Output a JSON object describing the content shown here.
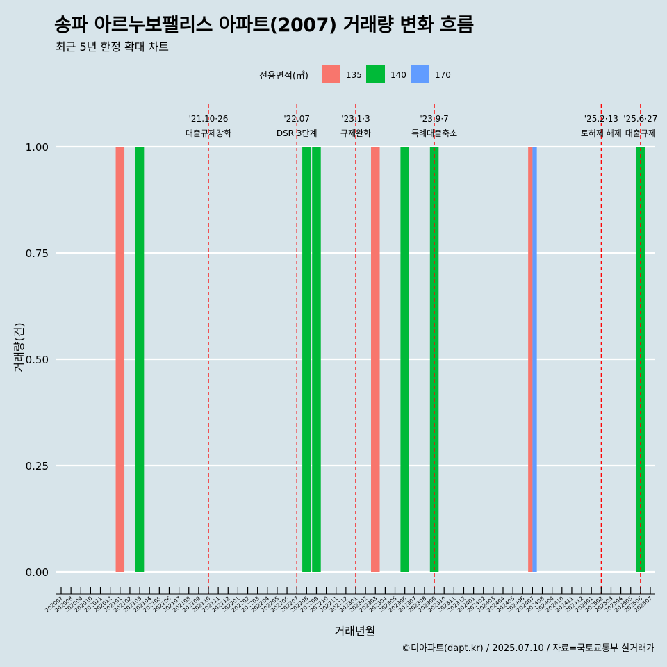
{
  "title": "송파 아르누보팰리스 아파트(2007) 거래량 변화 흐름",
  "subtitle": "최근 5년 한정 확대 차트",
  "caption": "©디아파트(dapt.kr) / 2025.07.10 / 자료=국토교통부 실거래가",
  "chart_data": {
    "type": "bar",
    "xlabel": "거래년월",
    "ylabel": "거래량(건)",
    "ylim": [
      0,
      1
    ],
    "y_ticks": [
      0.0,
      0.25,
      0.5,
      0.75,
      1.0
    ],
    "y_tick_labels": [
      "0.00",
      "0.25",
      "0.50",
      "0.75",
      "1.00"
    ],
    "grid": true,
    "legend": {
      "title": "전용면적(㎡)",
      "position": "top",
      "entries": [
        {
          "label": "135",
          "color": "#F8766D"
        },
        {
          "label": "140",
          "color": "#00BA38"
        },
        {
          "label": "170",
          "color": "#619CFF"
        }
      ]
    },
    "categories": [
      "202007",
      "202008",
      "202009",
      "202010",
      "202011",
      "202012",
      "202101",
      "202102",
      "202103",
      "202104",
      "202105",
      "202106",
      "202107",
      "202108",
      "202109",
      "202110",
      "202111",
      "202112",
      "202201",
      "202202",
      "202203",
      "202204",
      "202205",
      "202206",
      "202207",
      "202208",
      "202209",
      "202210",
      "202211",
      "202212",
      "202301",
      "202302",
      "202303",
      "202304",
      "202305",
      "202306",
      "202307",
      "202308",
      "202309",
      "202310",
      "202311",
      "202312",
      "202401",
      "202402",
      "202403",
      "202404",
      "202405",
      "202406",
      "202407",
      "202408",
      "202409",
      "202410",
      "202411",
      "202412",
      "202501",
      "202502",
      "202503",
      "202504",
      "202505",
      "202506",
      "202507"
    ],
    "series": [
      {
        "name": "135",
        "color": "#F8766D",
        "points": [
          {
            "x": "202101",
            "y": 1
          },
          {
            "x": "202303",
            "y": 1
          },
          {
            "x": "202407",
            "y": 1
          }
        ]
      },
      {
        "name": "140",
        "color": "#00BA38",
        "points": [
          {
            "x": "202103",
            "y": 1
          },
          {
            "x": "202208",
            "y": 1
          },
          {
            "x": "202209",
            "y": 1
          },
          {
            "x": "202306",
            "y": 1
          },
          {
            "x": "202309",
            "y": 1
          },
          {
            "x": "202506",
            "y": 1
          }
        ]
      },
      {
        "name": "170",
        "color": "#619CFF",
        "points": [
          {
            "x": "202407",
            "y": 1
          }
        ]
      }
    ],
    "annotations": [
      {
        "x": "202110",
        "label1": "'21.10·26",
        "label2": "대출규제강화",
        "color": "#ff0000"
      },
      {
        "x": "202207",
        "label1": "'22.07",
        "label2": "DSR 3단계",
        "color": "#ff0000"
      },
      {
        "x": "202301",
        "label1": "'23.1·3",
        "label2": "규제완화",
        "color": "#ff0000"
      },
      {
        "x": "202309",
        "label1": "'23.9·7",
        "label2": "특례대출축소",
        "color": "#ff0000"
      },
      {
        "x": "202502",
        "label1": "'25.2·13",
        "label2": "토허제 해제",
        "color": "#ff0000"
      },
      {
        "x": "202506",
        "label1": "'25.6·27",
        "label2": "대출규제",
        "color": "#ff0000"
      }
    ]
  }
}
